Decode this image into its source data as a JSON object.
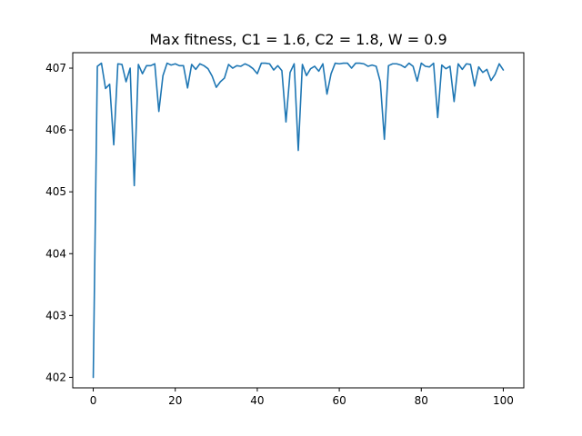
{
  "chart_data": {
    "type": "line",
    "title": "Max fitness, C1 = 1.6, C2 = 1.8, W = 0.9",
    "xlabel": "",
    "ylabel": "",
    "xlim": [
      -5,
      105
    ],
    "ylim": [
      401.83,
      407.25
    ],
    "grid": false,
    "legend": "none",
    "xticks": [
      0,
      20,
      40,
      60,
      80,
      100
    ],
    "yticks": [
      402,
      403,
      404,
      405,
      406,
      407
    ],
    "series": [
      {
        "color": "#1f77b4",
        "x": [
          0,
          1,
          2,
          3,
          4,
          5,
          6,
          7,
          8,
          9,
          10,
          11,
          12,
          13,
          14,
          15,
          16,
          17,
          18,
          19,
          20,
          21,
          22,
          23,
          24,
          25,
          26,
          27,
          28,
          29,
          30,
          31,
          32,
          33,
          34,
          35,
          36,
          37,
          38,
          39,
          40,
          41,
          42,
          43,
          44,
          45,
          46,
          47,
          48,
          49,
          50,
          51,
          52,
          53,
          54,
          55,
          56,
          57,
          58,
          59,
          60,
          61,
          62,
          63,
          64,
          65,
          66,
          67,
          68,
          69,
          70,
          71,
          72,
          73,
          74,
          75,
          76,
          77,
          78,
          79,
          80,
          81,
          82,
          83,
          84,
          85,
          86,
          87,
          88,
          89,
          90,
          91,
          92,
          93,
          94,
          95,
          96,
          97,
          98,
          99,
          100
        ],
        "values": [
          402.0,
          407.03,
          407.08,
          406.67,
          406.74,
          405.76,
          407.07,
          407.06,
          406.78,
          407.0,
          405.1,
          407.06,
          406.91,
          407.04,
          407.04,
          407.07,
          406.3,
          406.88,
          407.08,
          407.05,
          407.07,
          407.04,
          407.04,
          406.68,
          407.06,
          406.98,
          407.07,
          407.04,
          406.99,
          406.87,
          406.69,
          406.78,
          406.84,
          407.06,
          407.0,
          407.04,
          407.03,
          407.07,
          407.04,
          406.99,
          406.91,
          407.08,
          407.08,
          407.07,
          406.97,
          407.04,
          406.96,
          406.13,
          406.93,
          407.07,
          405.67,
          407.06,
          406.88,
          406.99,
          407.03,
          406.95,
          407.07,
          406.58,
          406.91,
          407.08,
          407.07,
          407.08,
          407.08,
          407.0,
          407.08,
          407.08,
          407.07,
          407.03,
          407.05,
          407.03,
          406.78,
          405.85,
          407.04,
          407.07,
          407.07,
          407.05,
          407.01,
          407.08,
          407.03,
          406.79,
          407.08,
          407.03,
          407.02,
          407.08,
          406.2,
          407.05,
          406.99,
          407.03,
          406.46,
          407.07,
          406.98,
          407.07,
          407.06,
          406.71,
          407.02,
          406.93,
          406.98,
          406.8,
          406.9,
          407.07,
          406.97
        ]
      }
    ]
  }
}
